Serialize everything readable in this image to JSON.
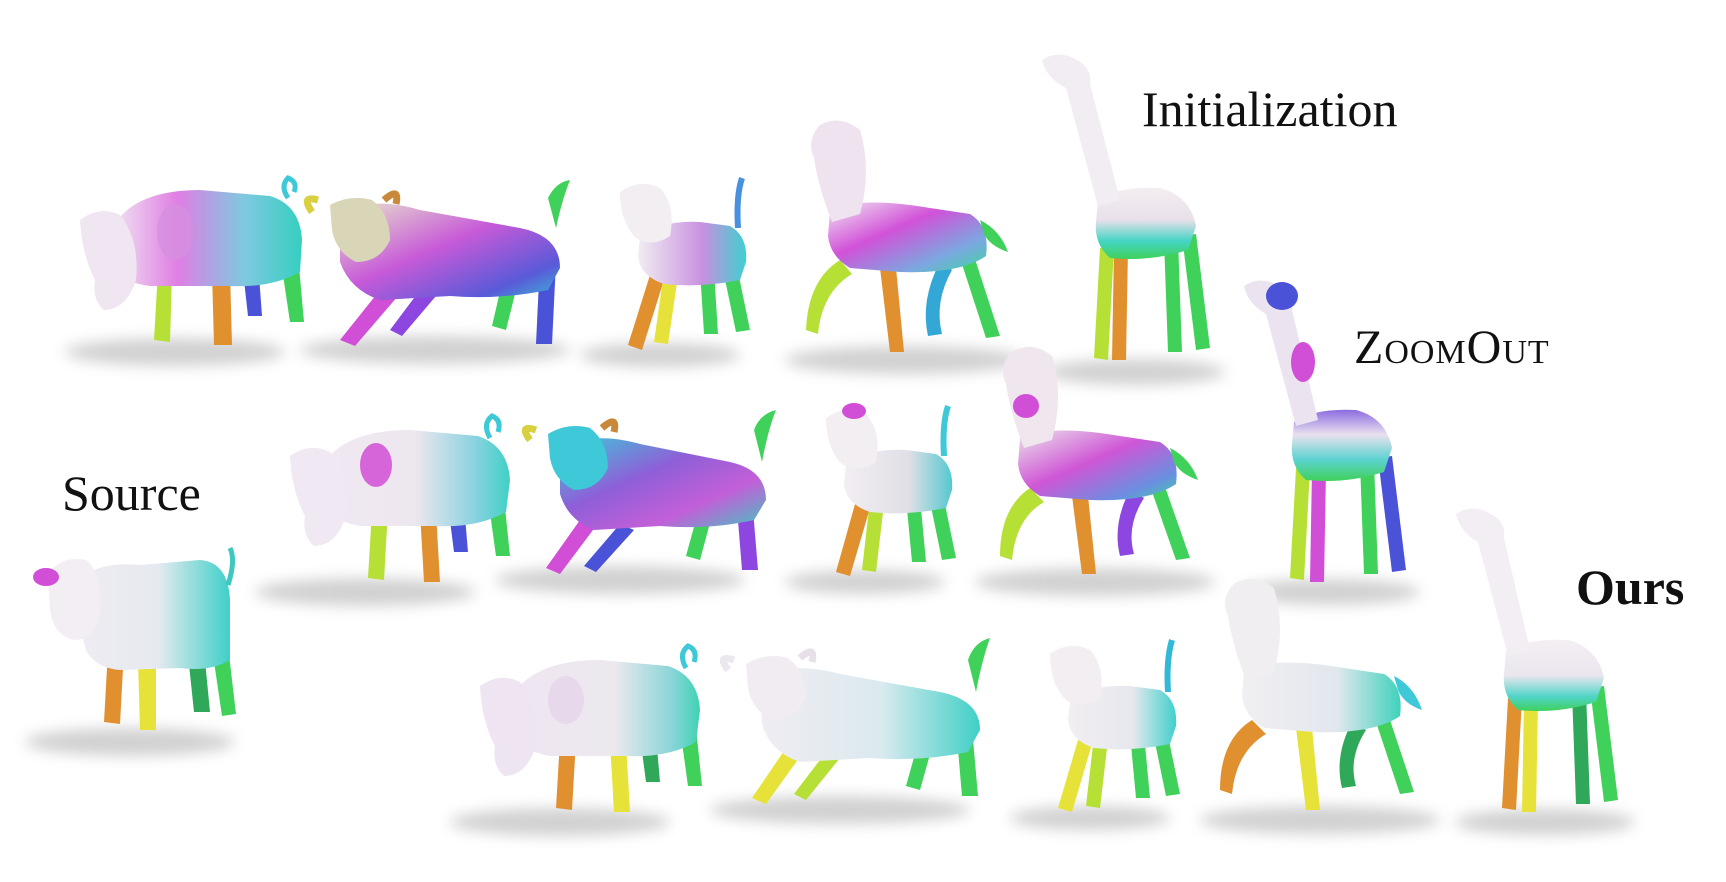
{
  "labels": {
    "source": "Source",
    "initialization": "Initialization",
    "zoomout": "ZoomOut",
    "ours": "Ours"
  },
  "rows": [
    {
      "method": "Initialization",
      "shapes": [
        "pig",
        "bull",
        "dog",
        "horse",
        "giraffe"
      ]
    },
    {
      "method": "ZoomOut",
      "shapes": [
        "pig",
        "bull",
        "dog",
        "horse",
        "giraffe"
      ]
    },
    {
      "method": "Ours",
      "shapes": [
        "pig",
        "bull",
        "dog",
        "horse",
        "giraffe"
      ]
    }
  ],
  "source_shape": "cow",
  "colors": {
    "head": "#f2eef4",
    "pink": "#e57ee6",
    "magenta": "#d14ed6",
    "violet": "#8d47e0",
    "blue": "#4a52d8",
    "cyan": "#33c3d6",
    "teal": "#3dd6b3",
    "green": "#3fd15a",
    "lime": "#b6e036",
    "yellow": "#e6e23a",
    "orange": "#e0902f",
    "shadow": "#9a9a9a"
  }
}
